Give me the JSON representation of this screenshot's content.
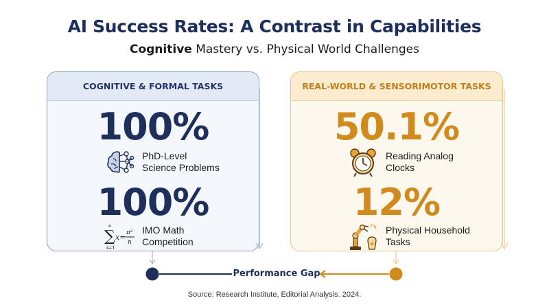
{
  "title": "AI Success Rates: A Contrast in Capabilities",
  "subtitle": {
    "bold": "Cognitive",
    "rest": "Mastery vs. Physical World Challenges"
  },
  "left_panel": {
    "header": "COGNITIVE & FORMAL TASKS",
    "stat1": {
      "value": "100%",
      "label": "PhD-Level\nScience Problems",
      "icon": "brain-network-icon"
    },
    "stat2": {
      "value": "100%",
      "label": "IMO Math\nCompetition",
      "icon": "math-formula-icon"
    }
  },
  "right_panel": {
    "header": "REAL-WORLD & SENSORIMOTOR TASKS",
    "stat1": {
      "value": "50.1%",
      "label": "Reading Analog\nClocks",
      "icon": "alarm-clock-icon"
    },
    "stat2": {
      "value": "12%",
      "label": "Physical Household\nTasks",
      "icon": "robot-arm-icon"
    }
  },
  "gap_label": "Performance Gap",
  "source": "Source: Research Institute, Editorial Analysis. 2024.",
  "colors": {
    "navy": "#1f2f5c",
    "gold": "#d08a1e"
  }
}
